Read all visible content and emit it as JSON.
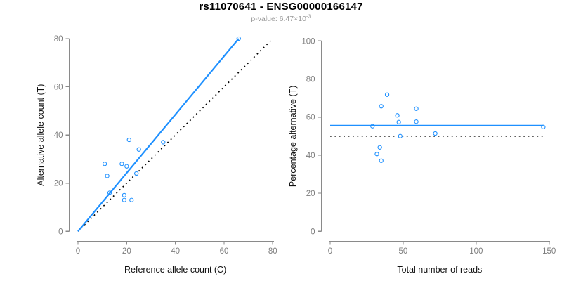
{
  "header": {
    "title": "rs11070641 - ENSG00000166147",
    "subtitle_prefix": "p-value: 6.47×10",
    "subtitle_exponent": "-3"
  },
  "colors": {
    "accent": "#1E90FF",
    "black": "#000000",
    "axis": "#8A8A8A",
    "tick_label": "#7D7D7D",
    "axis_title": "#111111",
    "subtitle": "#999999"
  },
  "chart_data": [
    {
      "type": "scatter",
      "name": "allele-counts",
      "xlabel": "Reference allele count (C)",
      "ylabel": "Alternative allele count (T)",
      "xlim": [
        0,
        80
      ],
      "ylim": [
        0,
        80
      ],
      "xticks": [
        0,
        20,
        40,
        60,
        80
      ],
      "yticks": [
        0,
        20,
        40,
        60,
        80
      ],
      "grid": false,
      "marker": "open-circle",
      "points": [
        [
          11,
          28
        ],
        [
          12,
          23
        ],
        [
          13,
          16
        ],
        [
          18,
          28
        ],
        [
          19,
          13
        ],
        [
          19,
          15
        ],
        [
          20,
          27
        ],
        [
          21,
          38
        ],
        [
          22,
          13
        ],
        [
          24,
          24
        ],
        [
          25,
          34
        ],
        [
          35,
          37
        ],
        [
          66,
          80
        ]
      ],
      "lines": [
        {
          "name": "identity-line",
          "x1": 0,
          "y1": 0,
          "x2": 80,
          "y2": 80,
          "style": "dotted",
          "color": "black"
        },
        {
          "name": "fit-line",
          "x1": 0,
          "y1": 0,
          "x2": 66,
          "y2": 80,
          "style": "solid",
          "color": "accent"
        }
      ]
    },
    {
      "type": "scatter",
      "name": "percentage-vs-reads",
      "xlabel": "Total number of reads",
      "ylabel": "Percentage alternative (T)",
      "xlim": [
        0,
        150
      ],
      "ylim": [
        0,
        100
      ],
      "xticks": [
        0,
        50,
        100,
        150
      ],
      "yticks": [
        0,
        20,
        40,
        60,
        80,
        100
      ],
      "grid": false,
      "marker": "open-circle",
      "points": [
        [
          29,
          55.2
        ],
        [
          32,
          40.6
        ],
        [
          34,
          44.1
        ],
        [
          35,
          37.1
        ],
        [
          35,
          65.7
        ],
        [
          39,
          71.8
        ],
        [
          46,
          60.9
        ],
        [
          47,
          57.4
        ],
        [
          48,
          50.0
        ],
        [
          59,
          57.6
        ],
        [
          59,
          64.4
        ],
        [
          72,
          51.4
        ],
        [
          146,
          54.8
        ]
      ],
      "lines": [
        {
          "name": "null-line",
          "x1": 0,
          "y1": 50,
          "x2": 147.5,
          "y2": 50,
          "style": "dotted",
          "color": "black"
        },
        {
          "name": "mean-line",
          "x1": 0,
          "y1": 55.5,
          "x2": 146,
          "y2": 55.5,
          "style": "solid",
          "color": "accent"
        }
      ]
    }
  ]
}
